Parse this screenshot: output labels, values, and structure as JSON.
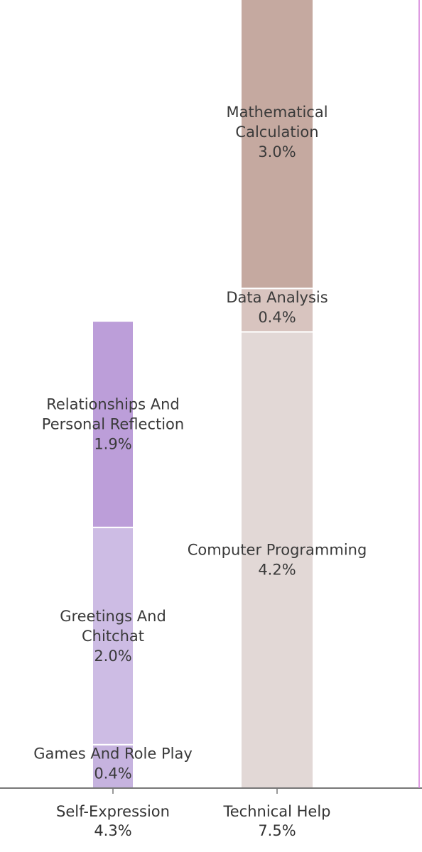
{
  "chart_data": {
    "type": "bar",
    "stacked": true,
    "categories": [
      {
        "name": "Self-Expression",
        "total": "4.3%",
        "segments": [
          {
            "name": [
              "Games And Role Play"
            ],
            "value": 0.4,
            "label": "0.4%",
            "color": "#c6b3df"
          },
          {
            "name": [
              "Greetings And",
              "Chitchat"
            ],
            "value": 2.0,
            "label": "2.0%",
            "color": "#cdbce4"
          },
          {
            "name": [
              "Relationships And",
              "Personal Reflection"
            ],
            "value": 1.9,
            "label": "1.9%",
            "color": "#bc9ed9"
          }
        ]
      },
      {
        "name": "Technical Help",
        "total": "7.5%",
        "segments": [
          {
            "name": [
              "Computer Programming"
            ],
            "value": 4.2,
            "label": "4.2%",
            "color": "#e2d8d6"
          },
          {
            "name": [
              "Data Analysis"
            ],
            "value": 0.4,
            "label": "0.4%",
            "color": "#d8c4bf"
          },
          {
            "name": [
              "Mathematical",
              "Calculation"
            ],
            "value": 3.0,
            "label": "3.0%",
            "color": "#c5a9a0"
          }
        ]
      }
    ],
    "xlabel": "",
    "ylabel": "",
    "grid": false,
    "legend": "none"
  }
}
